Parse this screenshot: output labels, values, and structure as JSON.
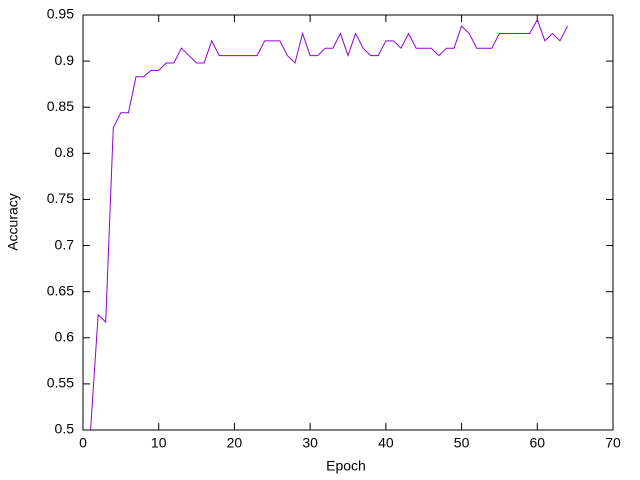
{
  "chart_data": {
    "type": "line",
    "x_label": "Epoch",
    "y_label": "Accuracy",
    "x": [
      1,
      2,
      3,
      4,
      5,
      6,
      7,
      8,
      9,
      10,
      11,
      12,
      13,
      14,
      15,
      16,
      17,
      18,
      19,
      20,
      21,
      22,
      23,
      24,
      25,
      26,
      27,
      28,
      29,
      30,
      31,
      32,
      33,
      34,
      35,
      36,
      37,
      38,
      39,
      40,
      41,
      42,
      43,
      44,
      45,
      46,
      47,
      48,
      49,
      50,
      51,
      52,
      53,
      54,
      55,
      56,
      57,
      58,
      59,
      60,
      61,
      62,
      63,
      64
    ],
    "series": [
      {
        "color": "#9400d3",
        "values": [
          0.5,
          0.625,
          0.617,
          0.828,
          0.844,
          0.844,
          0.883,
          0.883,
          0.89,
          0.89,
          0.898,
          0.898,
          0.914,
          0.906,
          0.898,
          0.898,
          0.922,
          0.906,
          0.906,
          0.906,
          0.906,
          0.906,
          0.906,
          0.922,
          0.922,
          0.922,
          0.906,
          0.898,
          0.93,
          0.906,
          0.906,
          0.914,
          0.914,
          0.93,
          0.906,
          0.93,
          0.914,
          0.906,
          0.906,
          0.922,
          0.922,
          0.914,
          0.93,
          0.914,
          0.914,
          0.914,
          0.906,
          0.914,
          0.914,
          0.938,
          0.93,
          0.914,
          0.914,
          0.914,
          0.93,
          0.93,
          0.93,
          0.93,
          0.93,
          0.945,
          0.922,
          0.93,
          0.922,
          0.938
        ]
      }
    ],
    "xlim": [
      0,
      70
    ],
    "xticks": [
      0,
      10,
      20,
      30,
      40,
      50,
      60,
      70
    ],
    "ylim": [
      0.5,
      0.95
    ],
    "yticks": [
      0.5,
      0.55,
      0.6,
      0.65,
      0.7,
      0.75,
      0.8,
      0.85,
      0.9,
      0.95
    ]
  }
}
